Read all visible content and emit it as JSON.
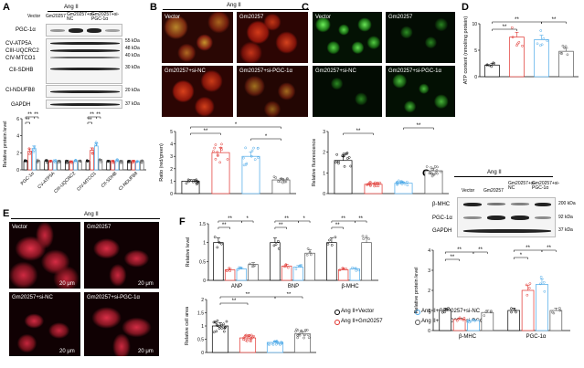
{
  "panel_letters": [
    "A",
    "B",
    "C",
    "D",
    "E",
    "F",
    "G"
  ],
  "panelA": {
    "header": "Ang II",
    "lanes": [
      "Vector",
      "Gm20257",
      "Gm20257+si-NC",
      "Gm20257+si-PGC-1α"
    ],
    "bands": [
      "PGC-1α",
      "CV-ATP5A",
      "CIII-UQCRC2",
      "CIV-MTCO1",
      "CII-SDHB",
      "CI-NDUFB8",
      "GAPDH"
    ],
    "kda": [
      "55 kDa",
      "48 kDa",
      "40 kDa",
      "30 kDa",
      "20 kDa",
      "37 kDa"
    ]
  },
  "panelB": {
    "header": "Ang II",
    "micro_labels": [
      "Vector",
      "Gm20257",
      "Gm20257+si-NC",
      "Gm20257+si-PGC-1α"
    ]
  },
  "panelC": {
    "micro_labels": [
      "Vector",
      "Gm20257",
      "Gm20257+si-NC",
      "Gm20257+si-PGC-1α"
    ]
  },
  "panelE": {
    "header": "Ang II",
    "micro_labels": [
      "Vector",
      "Gm20257",
      "Gm20257+si-NC",
      "Gm20257+si-PGC-1α"
    ],
    "scale": "20 μm"
  },
  "panelG": {
    "header": "Ang II",
    "lanes": [
      "Vector",
      "Gm20257",
      "Gm20257+si-NC",
      "Gm20257+si-PGC-1α"
    ],
    "bands": [
      "β-MHC",
      "PGC-1α",
      "GAPDH"
    ],
    "kda": [
      "200 kDa",
      "92 kDa",
      "37 kDa"
    ]
  },
  "legend": {
    "items": [
      "Ang II+Vector",
      "Ang II+Gm20257",
      "Ang II+Gm20257+si-NC",
      "Ang II+Gm20257+si-PGC-1α"
    ],
    "colors": [
      "#000000",
      "#e0312c",
      "#4aa8e8",
      "#555555"
    ]
  },
  "sig": "**",
  "sig1": "*",
  "chart_data": [
    {
      "id": "A",
      "type": "bar",
      "ylabel": "Relative protein level",
      "ylim": [
        0,
        6
      ],
      "yticks": [
        0,
        2,
        4,
        6
      ],
      "categories": [
        "PGC-1α",
        "CV-ATP5A",
        "CIII-UQCRC2",
        "CIV-MTCO1",
        "CII-SDHB",
        "CI-NDUFB8"
      ],
      "series": [
        {
          "name": "Ang II+Vector",
          "values": [
            1.0,
            1.0,
            1.0,
            1.0,
            1.0,
            1.0
          ]
        },
        {
          "name": "Ang II+Gm20257",
          "values": [
            2.2,
            1.0,
            0.95,
            2.3,
            1.0,
            1.0
          ]
        },
        {
          "name": "Ang II+Gm20257+si-NC",
          "values": [
            2.5,
            1.05,
            1.0,
            2.8,
            1.05,
            0.95
          ]
        },
        {
          "name": "Ang II+Gm20257+si-PGC-1α",
          "values": [
            1.0,
            1.0,
            1.0,
            1.1,
            1.0,
            1.0
          ]
        }
      ]
    },
    {
      "id": "B",
      "type": "bar",
      "ylabel": "Ratio (red/green)",
      "ylim": [
        0,
        5
      ],
      "yticks": [
        0,
        1,
        2,
        3,
        4,
        5
      ],
      "categories": [
        "Vector",
        "Gm20257",
        "Gm20257+si-NC",
        "Gm20257+si-PGC-1α"
      ],
      "values": [
        1.0,
        3.3,
        3.0,
        1.1
      ]
    },
    {
      "id": "C",
      "type": "bar",
      "ylabel": "Relative fluorescence",
      "ylim": [
        0,
        3
      ],
      "yticks": [
        0,
        1,
        2,
        3
      ],
      "categories": [
        "Vector",
        "Gm20257",
        "Gm20257+si-NC",
        "Gm20257+si-PGC-1α"
      ],
      "values": [
        1.6,
        0.45,
        0.5,
        1.1
      ]
    },
    {
      "id": "D",
      "type": "bar",
      "ylabel": "ATP content (nmol/mg protein)",
      "ylim": [
        0,
        10
      ],
      "yticks": [
        0,
        5,
        10
      ],
      "categories": [
        "Vector",
        "Gm20257",
        "Gm20257+si-NC",
        "Gm20257+si-PGC-1α"
      ],
      "values": [
        2.2,
        7.5,
        7.0,
        4.8
      ]
    },
    {
      "id": "F",
      "type": "bar",
      "ylabel": "Relative level",
      "ylim": [
        0,
        1.5
      ],
      "yticks": [
        0,
        0.5,
        1.0,
        1.5
      ],
      "categories": [
        "ANP",
        "BNP",
        "β-MHC"
      ],
      "series": [
        {
          "name": "Ang II+Vector",
          "values": [
            1.0,
            1.0,
            1.0
          ]
        },
        {
          "name": "Ang II+Gm20257",
          "values": [
            0.28,
            0.38,
            0.28
          ]
        },
        {
          "name": "Ang II+Gm20257+si-NC",
          "values": [
            0.3,
            0.35,
            0.3
          ]
        },
        {
          "name": "Ang II+Gm20257+si-PGC-1α",
          "values": [
            0.42,
            0.72,
            1.0
          ]
        }
      ]
    },
    {
      "id": "F2",
      "type": "bar",
      "ylabel": "Relative cell area",
      "ylim": [
        0,
        2.0
      ],
      "yticks": [
        0,
        0.5,
        1.0,
        1.5,
        2.0
      ],
      "categories": [
        "Vector",
        "Gm20257",
        "Gm20257+si-NC",
        "Gm20257+si-PGC-1α"
      ],
      "values": [
        1.0,
        0.55,
        0.38,
        0.7
      ]
    },
    {
      "id": "G",
      "type": "bar",
      "ylabel": "Relative protein level",
      "ylim": [
        0,
        4
      ],
      "yticks": [
        0,
        1,
        2,
        3,
        4
      ],
      "categories": [
        "β-MHC",
        "PGC-1α"
      ],
      "series": [
        {
          "name": "Ang II+Vector",
          "values": [
            1.0,
            1.0
          ]
        },
        {
          "name": "Ang II+Gm20257",
          "values": [
            0.55,
            2.0
          ]
        },
        {
          "name": "Ang II+Gm20257+si-NC",
          "values": [
            0.5,
            2.3
          ]
        },
        {
          "name": "Ang II+Gm20257+si-PGC-1α",
          "values": [
            0.9,
            1.0
          ]
        }
      ]
    }
  ]
}
